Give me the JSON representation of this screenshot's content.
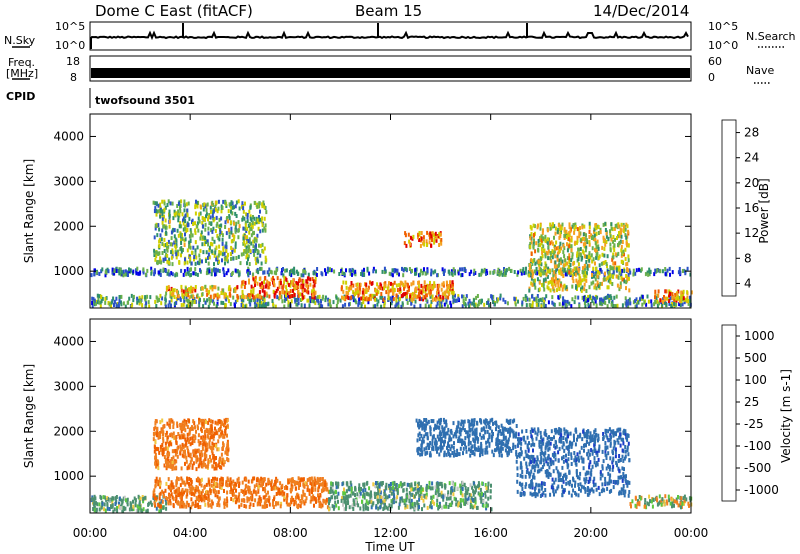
{
  "header": {
    "station": "Dome C East (fitACF)",
    "beam": "Beam 15",
    "date": "14/Dec/2014"
  },
  "nsky_panel": {
    "left_label": "N.Sky",
    "right_label": "N.Search",
    "left_ticks": [
      "10^5",
      "10^0"
    ],
    "right_ticks": [
      "10^5",
      "10^0"
    ]
  },
  "freq_panel": {
    "left_label_1": "Freq.",
    "left_label_2": "[MHz]",
    "right_label": "Nave",
    "left_ticks": [
      "18",
      "8"
    ],
    "right_ticks": [
      "60",
      "0"
    ]
  },
  "cpid_panel": {
    "label": "CPID",
    "program": "twofsound 3501"
  },
  "power_panel": {
    "ylabel": "Slant Range [km]",
    "yticks": [
      "4000",
      "3000",
      "2000",
      "1000"
    ],
    "colorbar_label": "Power [dB]",
    "colorbar_ticks": [
      "28",
      "24",
      "20",
      "16",
      "12",
      "8",
      "4"
    ],
    "colors": [
      "#0000e6",
      "#2a52c8",
      "#2f8f6a",
      "#6ab04c",
      "#cfd000",
      "#f5a020",
      "#f06000",
      "#e00000"
    ]
  },
  "velocity_panel": {
    "ylabel": "Slant Range [km]",
    "yticks": [
      "4000",
      "3000",
      "2000",
      "1000"
    ],
    "colorbar_label": "Velocity [m s-1]",
    "colorbar_ticks": [
      "1000",
      "500",
      "100",
      "25",
      "-25",
      "-100",
      "-500",
      "-1000"
    ],
    "colors": [
      "#1a3cc8",
      "#2f6fb0",
      "#4c9070",
      "#5bc840",
      "#c8c8c8",
      "#f0c840",
      "#f08020",
      "#f06000",
      "#e00000"
    ]
  },
  "time_axis": {
    "label": "Time UT",
    "ticks": [
      "00:00",
      "04:00",
      "08:00",
      "12:00",
      "16:00",
      "20:00",
      "00:00"
    ]
  },
  "chart_data": [
    {
      "type": "heatmap",
      "name": "Power",
      "xlabel": "Time UT",
      "ylabel": "Slant Range [km]",
      "xlim": [
        "00:00",
        "24:00"
      ],
      "ylim": [
        180,
        4500
      ],
      "colorbar": {
        "label": "Power [dB]",
        "range": [
          0,
          30
        ],
        "ticks": [
          4,
          8,
          12,
          16,
          20,
          24,
          28
        ]
      },
      "regions": [
        {
          "t_start": 0.0,
          "t_end": 24.0,
          "range_start": 250,
          "range_end": 500,
          "value": 10
        },
        {
          "t_start": 0.0,
          "t_end": 24.0,
          "range_start": 950,
          "range_end": 1100,
          "value": 8
        },
        {
          "t_start": 6.0,
          "t_end": 9.0,
          "range_start": 450,
          "range_end": 900,
          "value": 24
        },
        {
          "t_start": 3.0,
          "t_end": 6.0,
          "range_start": 450,
          "range_end": 700,
          "value": 20
        },
        {
          "t_start": 10.0,
          "t_end": 14.5,
          "range_start": 400,
          "range_end": 800,
          "value": 22
        },
        {
          "t_start": 12.5,
          "t_end": 14.0,
          "range_start": 1600,
          "range_end": 1900,
          "value": 22
        },
        {
          "t_start": 17.5,
          "t_end": 21.5,
          "range_start": 600,
          "range_end": 2100,
          "value": 16
        },
        {
          "t_start": 22.5,
          "t_end": 24.0,
          "range_start": 350,
          "range_end": 600,
          "value": 22
        },
        {
          "t_start": 2.5,
          "t_end": 7.0,
          "range_start": 1200,
          "range_end": 2600,
          "value": 12
        }
      ]
    },
    {
      "type": "heatmap",
      "name": "Velocity",
      "xlabel": "Time UT",
      "ylabel": "Slant Range [km]",
      "xlim": [
        "00:00",
        "24:00"
      ],
      "ylim": [
        180,
        4500
      ],
      "colorbar": {
        "label": "Velocity [m s-1]",
        "range": [
          -1000,
          1000
        ],
        "ticks": [
          1000,
          500,
          100,
          25,
          -25,
          -100,
          -500,
          -1000
        ]
      },
      "regions": [
        {
          "t_start": 0.0,
          "t_end": 3.0,
          "range_start": 250,
          "range_end": 600,
          "value": 150
        },
        {
          "t_start": 2.5,
          "t_end": 9.5,
          "range_start": 350,
          "range_end": 1000,
          "value": -250
        },
        {
          "t_start": 2.5,
          "t_end": 5.5,
          "range_start": 1200,
          "range_end": 2300,
          "value": -250
        },
        {
          "t_start": 9.5,
          "t_end": 16.0,
          "range_start": 300,
          "range_end": 900,
          "value": 150
        },
        {
          "t_start": 13.0,
          "t_end": 17.0,
          "range_start": 1500,
          "range_end": 2300,
          "value": 500
        },
        {
          "t_start": 17.0,
          "t_end": 21.5,
          "range_start": 600,
          "range_end": 2100,
          "value": 600
        },
        {
          "t_start": 21.5,
          "t_end": 24.0,
          "range_start": 350,
          "range_end": 600,
          "value": 0
        }
      ]
    }
  ]
}
